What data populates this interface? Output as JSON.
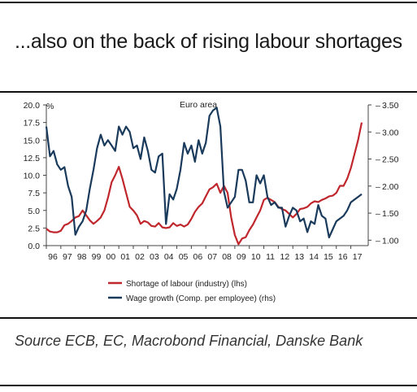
{
  "page": {
    "title": "...also on the back of rising labour shortages",
    "source": "Source ECB, EC, Macrobond Financial, Danske Bank"
  },
  "chart_data": {
    "type": "line",
    "title": "Euro area",
    "left_axis": {
      "unit": "%",
      "min": 0,
      "max": 20,
      "ticks": [
        "0.0",
        "2.5",
        "5.0",
        "7.5",
        "10.0",
        "12.5",
        "15.0",
        "17.5",
        "20.0"
      ]
    },
    "right_axis": {
      "min": 0.9,
      "max": 3.5,
      "ticks": [
        "1.00",
        "1.50",
        "2.00",
        "2.50",
        "3.00",
        "3.50"
      ]
    },
    "x_ticks": [
      "96",
      "97",
      "98",
      "99",
      "00",
      "01",
      "02",
      "03",
      "04",
      "05",
      "06",
      "07",
      "08",
      "09",
      "10",
      "11",
      "12",
      "13",
      "14",
      "15",
      "16",
      "17"
    ],
    "x_range": [
      1996.0,
      2018.2
    ],
    "series": [
      {
        "name": "Shortage of labour (industry) (lhs)",
        "axis": "left",
        "color": "#c0272d",
        "points": [
          [
            1996.0,
            2.4
          ],
          [
            1996.25,
            2.0
          ],
          [
            1996.5,
            1.9
          ],
          [
            1996.75,
            1.9
          ],
          [
            1997.0,
            2.1
          ],
          [
            1997.25,
            2.9
          ],
          [
            1997.5,
            3.1
          ],
          [
            1997.75,
            3.5
          ],
          [
            1998.0,
            4.0
          ],
          [
            1998.25,
            4.2
          ],
          [
            1998.5,
            5.0
          ],
          [
            1998.75,
            4.3
          ],
          [
            1999.0,
            3.6
          ],
          [
            1999.25,
            3.1
          ],
          [
            1999.5,
            3.5
          ],
          [
            1999.75,
            4.0
          ],
          [
            2000.0,
            5.0
          ],
          [
            2000.25,
            6.8
          ],
          [
            2000.5,
            9.0
          ],
          [
            2000.75,
            10.0
          ],
          [
            2001.0,
            11.2
          ],
          [
            2001.25,
            9.5
          ],
          [
            2001.5,
            7.5
          ],
          [
            2001.75,
            5.5
          ],
          [
            2002.0,
            5.0
          ],
          [
            2002.25,
            4.3
          ],
          [
            2002.5,
            3.1
          ],
          [
            2002.75,
            3.5
          ],
          [
            2003.0,
            3.3
          ],
          [
            2003.25,
            2.8
          ],
          [
            2003.5,
            2.7
          ],
          [
            2003.75,
            3.2
          ],
          [
            2004.0,
            2.6
          ],
          [
            2004.25,
            2.5
          ],
          [
            2004.5,
            2.6
          ],
          [
            2004.75,
            3.2
          ],
          [
            2005.0,
            2.8
          ],
          [
            2005.25,
            3.0
          ],
          [
            2005.5,
            2.7
          ],
          [
            2005.75,
            3.0
          ],
          [
            2006.0,
            3.8
          ],
          [
            2006.25,
            4.8
          ],
          [
            2006.5,
            5.5
          ],
          [
            2006.75,
            6.0
          ],
          [
            2007.0,
            7.0
          ],
          [
            2007.25,
            8.0
          ],
          [
            2007.5,
            8.3
          ],
          [
            2007.75,
            8.8
          ],
          [
            2008.0,
            7.5
          ],
          [
            2008.25,
            8.5
          ],
          [
            2008.5,
            7.5
          ],
          [
            2008.75,
            4.0
          ],
          [
            2009.0,
            1.5
          ],
          [
            2009.25,
            0.2
          ],
          [
            2009.5,
            1.0
          ],
          [
            2009.75,
            1.2
          ],
          [
            2010.0,
            2.2
          ],
          [
            2010.25,
            3.0
          ],
          [
            2010.5,
            4.0
          ],
          [
            2010.75,
            5.0
          ],
          [
            2011.0,
            6.5
          ],
          [
            2011.25,
            6.8
          ],
          [
            2011.5,
            6.5
          ],
          [
            2011.75,
            6.2
          ],
          [
            2012.0,
            5.5
          ],
          [
            2012.25,
            5.2
          ],
          [
            2012.5,
            5.0
          ],
          [
            2012.75,
            4.5
          ],
          [
            2013.0,
            4.0
          ],
          [
            2013.25,
            4.5
          ],
          [
            2013.5,
            5.2
          ],
          [
            2013.75,
            5.3
          ],
          [
            2014.0,
            5.5
          ],
          [
            2014.25,
            6.0
          ],
          [
            2014.5,
            6.3
          ],
          [
            2014.75,
            6.2
          ],
          [
            2015.0,
            6.5
          ],
          [
            2015.25,
            6.7
          ],
          [
            2015.5,
            7.0
          ],
          [
            2015.75,
            7.1
          ],
          [
            2016.0,
            7.5
          ],
          [
            2016.25,
            8.5
          ],
          [
            2016.5,
            8.5
          ],
          [
            2016.75,
            9.5
          ],
          [
            2017.0,
            11.0
          ],
          [
            2017.25,
            13.0
          ],
          [
            2017.5,
            15.0
          ],
          [
            2017.75,
            17.5
          ]
        ]
      },
      {
        "name": "Wage growth (Comp. per employee)  (rhs)",
        "axis": "right",
        "color": "#1a3a5c",
        "points": [
          [
            1996.0,
            3.1
          ],
          [
            1996.25,
            2.55
          ],
          [
            1996.5,
            2.65
          ],
          [
            1996.75,
            2.4
          ],
          [
            1997.0,
            2.3
          ],
          [
            1997.25,
            2.35
          ],
          [
            1997.5,
            2.0
          ],
          [
            1997.75,
            1.8
          ],
          [
            1998.0,
            1.1
          ],
          [
            1998.25,
            1.25
          ],
          [
            1998.5,
            1.35
          ],
          [
            1998.75,
            1.55
          ],
          [
            1999.0,
            1.95
          ],
          [
            1999.25,
            2.3
          ],
          [
            1999.5,
            2.7
          ],
          [
            1999.75,
            2.95
          ],
          [
            2000.0,
            2.75
          ],
          [
            2000.25,
            2.85
          ],
          [
            2000.5,
            2.75
          ],
          [
            2000.75,
            2.65
          ],
          [
            2001.0,
            3.1
          ],
          [
            2001.25,
            2.95
          ],
          [
            2001.5,
            3.1
          ],
          [
            2001.75,
            3.0
          ],
          [
            2002.0,
            2.7
          ],
          [
            2002.25,
            2.75
          ],
          [
            2002.5,
            2.5
          ],
          [
            2002.75,
            2.9
          ],
          [
            2003.0,
            2.65
          ],
          [
            2003.25,
            2.3
          ],
          [
            2003.5,
            2.25
          ],
          [
            2003.75,
            2.55
          ],
          [
            2004.0,
            2.6
          ],
          [
            2004.25,
            1.3
          ],
          [
            2004.5,
            1.85
          ],
          [
            2004.75,
            1.75
          ],
          [
            2005.0,
            1.95
          ],
          [
            2005.25,
            2.3
          ],
          [
            2005.5,
            2.8
          ],
          [
            2005.75,
            2.6
          ],
          [
            2006.0,
            2.75
          ],
          [
            2006.25,
            2.45
          ],
          [
            2006.5,
            2.85
          ],
          [
            2006.75,
            2.6
          ],
          [
            2007.0,
            2.8
          ],
          [
            2007.25,
            3.3
          ],
          [
            2007.5,
            3.4
          ],
          [
            2007.75,
            3.45
          ],
          [
            2008.0,
            3.1
          ],
          [
            2008.25,
            1.9
          ],
          [
            2008.5,
            1.6
          ],
          [
            2008.75,
            1.7
          ],
          [
            2009.0,
            1.8
          ],
          [
            2009.25,
            2.3
          ],
          [
            2009.5,
            2.3
          ],
          [
            2009.75,
            2.1
          ],
          [
            2010.0,
            1.7
          ],
          [
            2010.25,
            1.7
          ],
          [
            2010.5,
            2.2
          ],
          [
            2010.75,
            2.05
          ],
          [
            2011.0,
            2.2
          ],
          [
            2011.25,
            1.8
          ],
          [
            2011.5,
            1.65
          ],
          [
            2011.75,
            1.7
          ],
          [
            2012.0,
            1.6
          ],
          [
            2012.25,
            1.6
          ],
          [
            2012.5,
            1.25
          ],
          [
            2012.75,
            1.45
          ],
          [
            2013.0,
            1.6
          ],
          [
            2013.25,
            1.55
          ],
          [
            2013.5,
            1.35
          ],
          [
            2013.75,
            1.4
          ],
          [
            2014.0,
            1.15
          ],
          [
            2014.25,
            1.35
          ],
          [
            2014.5,
            1.3
          ],
          [
            2014.75,
            1.65
          ],
          [
            2015.0,
            1.45
          ],
          [
            2015.25,
            1.4
          ],
          [
            2015.5,
            1.05
          ],
          [
            2015.75,
            1.2
          ],
          [
            2016.0,
            1.35
          ],
          [
            2016.25,
            1.4
          ],
          [
            2016.5,
            1.45
          ],
          [
            2016.75,
            1.55
          ],
          [
            2017.0,
            1.7
          ],
          [
            2017.25,
            1.75
          ],
          [
            2017.5,
            1.8
          ],
          [
            2017.75,
            1.85
          ]
        ]
      }
    ]
  }
}
